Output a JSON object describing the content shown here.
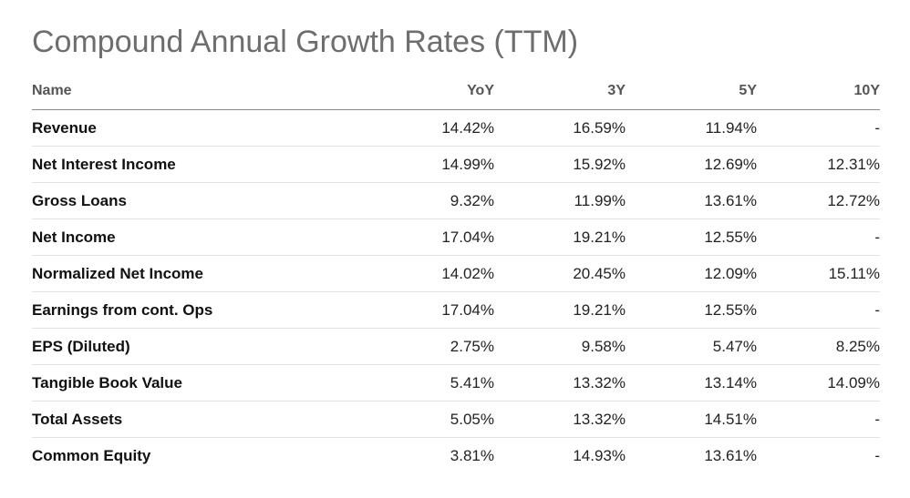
{
  "title": "Compound Annual Growth Rates (TTM)",
  "columns": [
    "Name",
    "YoY",
    "3Y",
    "5Y",
    "10Y"
  ],
  "rows": [
    {
      "name": "Revenue",
      "yoy": "14.42%",
      "y3": "16.59%",
      "y5": "11.94%",
      "y10": "-"
    },
    {
      "name": "Net Interest Income",
      "yoy": "14.99%",
      "y3": "15.92%",
      "y5": "12.69%",
      "y10": "12.31%"
    },
    {
      "name": "Gross Loans",
      "yoy": "9.32%",
      "y3": "11.99%",
      "y5": "13.61%",
      "y10": "12.72%"
    },
    {
      "name": "Net Income",
      "yoy": "17.04%",
      "y3": "19.21%",
      "y5": "12.55%",
      "y10": "-"
    },
    {
      "name": "Normalized Net Income",
      "yoy": "14.02%",
      "y3": "20.45%",
      "y5": "12.09%",
      "y10": "15.11%"
    },
    {
      "name": "Earnings from cont. Ops",
      "yoy": "17.04%",
      "y3": "19.21%",
      "y5": "12.55%",
      "y10": "-"
    },
    {
      "name": "EPS (Diluted)",
      "yoy": "2.75%",
      "y3": "9.58%",
      "y5": "5.47%",
      "y10": "8.25%"
    },
    {
      "name": "Tangible Book Value",
      "yoy": "5.41%",
      "y3": "13.32%",
      "y5": "13.14%",
      "y10": "14.09%"
    },
    {
      "name": "Total Assets",
      "yoy": "5.05%",
      "y3": "13.32%",
      "y5": "14.51%",
      "y10": "-"
    },
    {
      "name": "Common Equity",
      "yoy": "3.81%",
      "y3": "14.93%",
      "y5": "13.61%",
      "y10": "-"
    }
  ]
}
